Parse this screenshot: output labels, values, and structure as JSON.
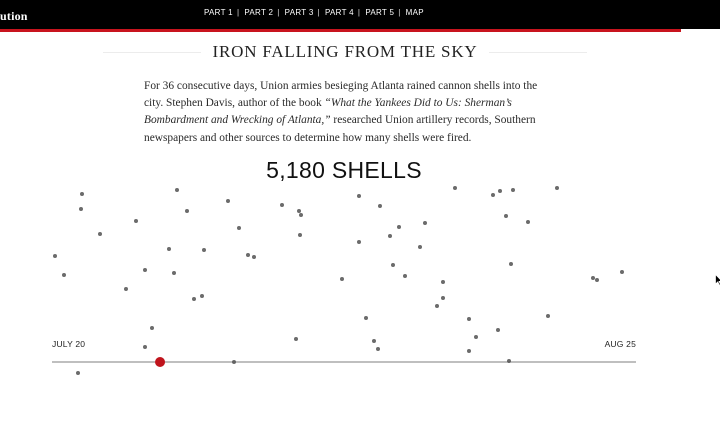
{
  "header": {
    "brand": "ution",
    "nav": [
      "PART 1",
      "PART 2",
      "PART 3",
      "PART 4",
      "PART 5",
      "MAP"
    ],
    "accent_color": "#c8141e"
  },
  "article": {
    "title": "IRON FALLING FROM THE SKY",
    "intro_part1": "For 36 consecutive days, Union armies besieging Atlanta rained cannon shells into the city. Stephen Davis, author of the book ",
    "intro_book": "“What the Yankees Did to Us: Sherman’s Bombardment and Wrecking of Atlanta,”",
    "intro_part2": " researched Union artillery records, Southern newspapers and other sources to determine how many shells were fired.",
    "shell_count": "5,180 SHELLS"
  },
  "chart_data": {
    "type": "scatter",
    "start_label": "JULY 20",
    "end_label": "AUG 25",
    "progress_marker_fraction": 0.185,
    "dot_color": "#6b6b6b",
    "marker_color": "#c0141c"
  }
}
